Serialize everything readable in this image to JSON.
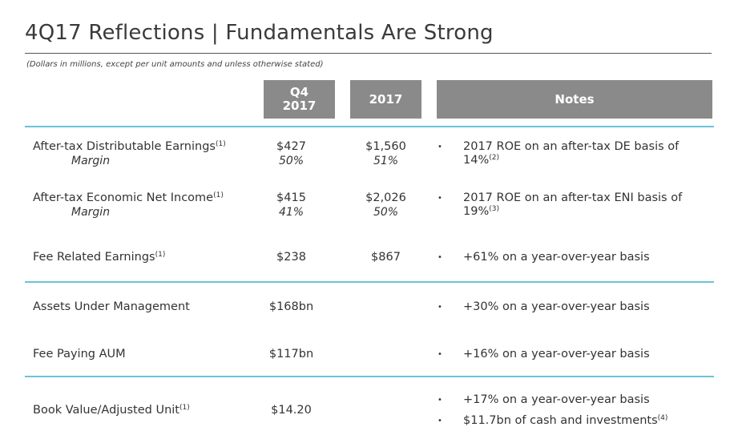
{
  "title": "4Q17 Reflections | Fundamentals Are Strong",
  "subtitle": "(Dollars in millions, except per unit amounts and unless otherwise stated)",
  "headers": {
    "q4_line1": "Q4",
    "q4_line2": "2017",
    "year": "2017",
    "notes": "Notes"
  },
  "rows": {
    "de": {
      "label": "After-tax Distributable Earnings",
      "label_sup": "(1)",
      "sublabel": "Margin",
      "q4": "$427",
      "q4_margin": "50%",
      "year": "$1,560",
      "year_margin": "51%",
      "note": "2017 ROE on an after-tax DE basis of 14%",
      "note_sup": "(2)"
    },
    "eni": {
      "label": "After-tax Economic Net Income",
      "label_sup": "(1)",
      "sublabel": "Margin",
      "q4": "$415",
      "q4_margin": "41%",
      "year": "$2,026",
      "year_margin": "50%",
      "note": "2017 ROE on an after-tax ENI basis of 19%",
      "note_sup": "(3)"
    },
    "fre": {
      "label": "Fee Related Earnings",
      "label_sup": "(1)",
      "q4": "$238",
      "year": "$867",
      "note": "+61% on a year-over-year basis"
    },
    "aum": {
      "label": "Assets Under Management",
      "q4": "$168bn",
      "note": "+30% on a year-over-year basis"
    },
    "fpaum": {
      "label": "Fee Paying AUM",
      "q4": "$117bn",
      "note": "+16% on a year-over-year basis"
    },
    "bv": {
      "label": "Book Value/Adjusted Unit",
      "label_sup": "(1)",
      "q4": "$14.20",
      "note1": "+17% on a year-over-year basis",
      "note2": "$11.7bn of cash and investments",
      "note2_sup": "(4)"
    }
  },
  "bullet_glyph": "•",
  "colors": {
    "header_bg": "#8a8a8a",
    "rule": "#6ac3dc"
  }
}
